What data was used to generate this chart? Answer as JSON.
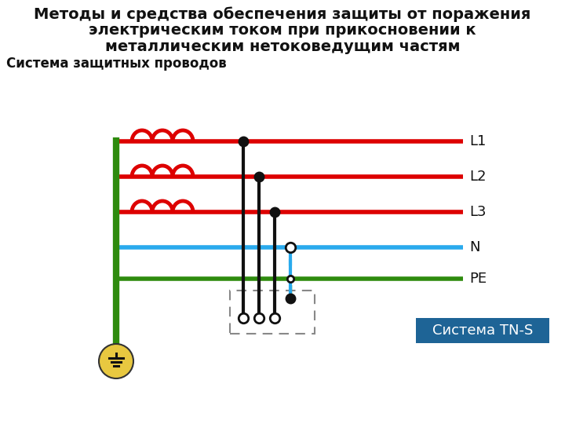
{
  "title_line1": "Методы и средства обеспечения защиты от поражения",
  "title_line2": "электрическим током при прикосновении к",
  "title_line3": "металлическим нетоковедущим частям",
  "subtitle": "Система защитных проводов",
  "label_system": "Система TN-S",
  "labels": [
    "L1",
    "L2",
    "L3",
    "N",
    "PE"
  ],
  "bg_color": "#ffffff",
  "red_color": "#dd0000",
  "blue_color": "#29aaed",
  "green_color": "#2e8b0e",
  "black_color": "#111111",
  "label_box_color": "#1e6496",
  "label_text_color": "#ffffff",
  "ground_color": "#e8c840",
  "title_fontsize": 14,
  "subtitle_fontsize": 12,
  "label_fontsize": 13
}
